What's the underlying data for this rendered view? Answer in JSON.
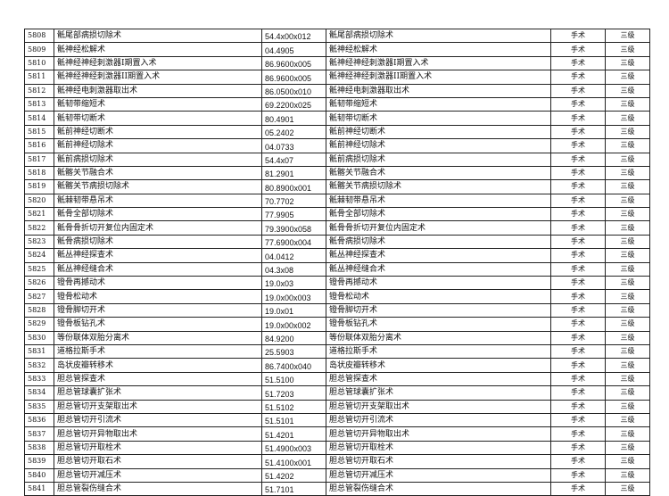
{
  "rows": [
    [
      "5808",
      "骶尾部病损切除术",
      "54.4x00x012",
      "骶尾部病损切除术",
      "手术",
      "三级"
    ],
    [
      "5809",
      "骶神经松解术",
      "04.4905",
      "骶神经松解术",
      "手术",
      "三级"
    ],
    [
      "5810",
      "骶神经神经刺激器I期置入术",
      "86.9600x005",
      "骶神经神经刺激器I期置入术",
      "手术",
      "三级"
    ],
    [
      "5811",
      "骶神经神经刺激器II期置入术",
      "86.9600x005",
      "骶神经神经刺激器II期置入术",
      "手术",
      "三级"
    ],
    [
      "5812",
      "骶神经电刺激器取出术",
      "86.0500x010",
      "骶神经电刺激器取出术",
      "手术",
      "三级"
    ],
    [
      "5813",
      "骶韧带缩短术",
      "69.2200x025",
      "骶韧带缩短术",
      "手术",
      "三级"
    ],
    [
      "5814",
      "骶韧带切断术",
      "80.4901",
      "骶韧带切断术",
      "手术",
      "三级"
    ],
    [
      "5815",
      "骶前神经切断术",
      "05.2402",
      "骶前神经切断术",
      "手术",
      "三级"
    ],
    [
      "5816",
      "骶前神经切除术",
      "04.0733",
      "骶前神经切除术",
      "手术",
      "三级"
    ],
    [
      "5817",
      "骶前病损切除术",
      "54.4x07",
      "骶前病损切除术",
      "手术",
      "三级"
    ],
    [
      "5818",
      "骶髂关节融合术",
      "81.2901",
      "骶髂关节融合术",
      "手术",
      "三级"
    ],
    [
      "5819",
      "骶髂关节病损切除术",
      "80.8900x001",
      "骶髂关节病损切除术",
      "手术",
      "三级"
    ],
    [
      "5820",
      "骶棘韧带悬吊术",
      "70.7702",
      "骶棘韧带悬吊术",
      "手术",
      "三级"
    ],
    [
      "5821",
      "骶骨全部切除术",
      "77.9905",
      "骶骨全部切除术",
      "手术",
      "三级"
    ],
    [
      "5822",
      "骶骨骨折切开复位内固定术",
      "79.3900x058",
      "骶骨骨折切开复位内固定术",
      "手术",
      "三级"
    ],
    [
      "5823",
      "骶骨病损切除术",
      "77.6900x004",
      "骶骨病损切除术",
      "手术",
      "三级"
    ],
    [
      "5824",
      "骶丛神经探查术",
      "04.0412",
      "骶丛神经探查术",
      "手术",
      "三级"
    ],
    [
      "5825",
      "骶丛神经缝合术",
      "04.3x08",
      "骶丛神经缝合术",
      "手术",
      "三级"
    ],
    [
      "5826",
      "镫骨再撼动术",
      "19.0x03",
      "镫骨再撼动术",
      "手术",
      "三级"
    ],
    [
      "5827",
      "镫骨松动术",
      "19.0x00x003",
      "镫骨松动术",
      "手术",
      "三级"
    ],
    [
      "5828",
      "镫骨脚切开术",
      "19.0x01",
      "镫骨脚切开术",
      "手术",
      "三级"
    ],
    [
      "5829",
      "镫骨板钻孔术",
      "19.0x00x002",
      "镫骨板钻孔术",
      "手术",
      "三级"
    ],
    [
      "5830",
      "等份联体双胎分离术",
      "84.9200",
      "等份联体双胎分离术",
      "手术",
      "三级"
    ],
    [
      "5831",
      "道格拉斯手术",
      "25.5903",
      "道格拉斯手术",
      "手术",
      "三级"
    ],
    [
      "5832",
      "岛状皮瓣转移术",
      "86.7400x040",
      "岛状皮瓣转移术",
      "手术",
      "三级"
    ],
    [
      "5833",
      "胆总管探查术",
      "51.5100",
      "胆总管探查术",
      "手术",
      "三级"
    ],
    [
      "5834",
      "胆总管球囊扩张术",
      "51.7203",
      "胆总管球囊扩张术",
      "手术",
      "三级"
    ],
    [
      "5835",
      "胆总管切开支架取出术",
      "51.5102",
      "胆总管切开支架取出术",
      "手术",
      "三级"
    ],
    [
      "5836",
      "胆总管切开引流术",
      "51.5101",
      "胆总管切开引流术",
      "手术",
      "三级"
    ],
    [
      "5837",
      "胆总管切开异物取出术",
      "51.4201",
      "胆总管切开异物取出术",
      "手术",
      "三级"
    ],
    [
      "5838",
      "胆总管切开取栓术",
      "51.4900x003",
      "胆总管切开取栓术",
      "手术",
      "三级"
    ],
    [
      "5839",
      "胆总管切开取石术",
      "51.4100x001",
      "胆总管切开取石术",
      "手术",
      "三级"
    ],
    [
      "5840",
      "胆总管切开减压术",
      "51.4202",
      "胆总管切开减压术",
      "手术",
      "三级"
    ],
    [
      "5841",
      "胆总管裂伤缝合术",
      "51.7101",
      "胆总管裂伤缝合术",
      "手术",
      "三级"
    ]
  ]
}
